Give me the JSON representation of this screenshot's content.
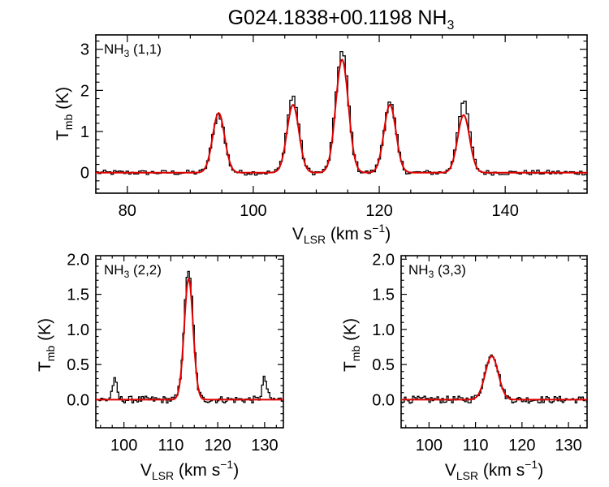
{
  "figure": {
    "title_main": "G024.1838+00.1198 NH",
    "title_sub": "3"
  },
  "chart_data": [
    {
      "type": "line",
      "panel": "top",
      "label": {
        "main": "NH",
        "sub": "3",
        "tail": " (1,1)"
      },
      "xlabel": {
        "main": "V",
        "sub": "LSR",
        "tail": " (km s",
        "sup": "−1",
        "end": ")"
      },
      "ylabel": {
        "main": "T",
        "sub": "mb",
        "tail": " (K)"
      },
      "xlim": [
        75,
        153
      ],
      "ylim": [
        -0.5,
        3.35
      ],
      "xticks": [
        80,
        100,
        120,
        140
      ],
      "yticks": [
        0,
        1,
        2,
        3
      ],
      "xtick_labels": [
        "80",
        "100",
        "120",
        "140"
      ],
      "ytick_labels": [
        "0",
        "1",
        "2",
        "3"
      ],
      "series": [
        {
          "name": "observed",
          "color": "#000000",
          "style": "histogram"
        },
        {
          "name": "fit",
          "color": "#e00000",
          "style": "line",
          "components": [
            {
              "center": 94.5,
              "amp": 1.45,
              "sigma": 0.95
            },
            {
              "center": 106.3,
              "amp": 1.65,
              "sigma": 0.95
            },
            {
              "center": 114.1,
              "amp": 2.75,
              "sigma": 1.0
            },
            {
              "center": 121.7,
              "amp": 1.65,
              "sigma": 0.95
            },
            {
              "center": 133.4,
              "amp": 1.4,
              "sigma": 0.95
            }
          ],
          "observed_peaks": [
            1.42,
            1.85,
            2.95,
            1.7,
            1.72
          ]
        }
      ]
    },
    {
      "type": "line",
      "panel": "bottom-left",
      "label": {
        "main": "NH",
        "sub": "3",
        "tail": " (2,2)"
      },
      "xlabel": {
        "main": "V",
        "sub": "LSR",
        "tail": " (km s",
        "sup": "−1",
        "end": ")"
      },
      "ylabel": {
        "main": "T",
        "sub": "mb",
        "tail": " (K)"
      },
      "xlim": [
        94,
        134
      ],
      "ylim": [
        -0.4,
        2.05
      ],
      "xticks": [
        100,
        110,
        120,
        130
      ],
      "yticks": [
        0.0,
        0.5,
        1.0,
        1.5,
        2.0
      ],
      "xtick_labels": [
        "100",
        "110",
        "120",
        "130"
      ],
      "ytick_labels": [
        "0.0",
        "0.5",
        "1.0",
        "1.5",
        "2.0"
      ],
      "series": [
        {
          "name": "observed",
          "color": "#000000",
          "style": "histogram"
        },
        {
          "name": "fit",
          "color": "#e00000",
          "style": "line",
          "components": [
            {
              "center": 113.8,
              "amp": 1.72,
              "sigma": 0.95
            }
          ],
          "observed_peaks": [
            1.85
          ],
          "noise_bumps": [
            {
              "center": 98.0,
              "amp": 0.27
            },
            {
              "center": 130.0,
              "amp": 0.3
            }
          ]
        }
      ]
    },
    {
      "type": "line",
      "panel": "bottom-right",
      "label": {
        "main": "NH",
        "sub": "3",
        "tail": " (3,3)"
      },
      "xlabel": {
        "main": "V",
        "sub": "LSR",
        "tail": " (km s",
        "sup": "−1",
        "end": ")"
      },
      "ylabel": {
        "main": "T",
        "sub": "mb",
        "tail": " (K)"
      },
      "xlim": [
        94,
        134
      ],
      "ylim": [
        -0.4,
        2.05
      ],
      "xticks": [
        100,
        110,
        120,
        130
      ],
      "yticks": [
        0.0,
        0.5,
        1.0,
        1.5,
        2.0
      ],
      "xtick_labels": [
        "100",
        "110",
        "120",
        "130"
      ],
      "ytick_labels": [
        "0.0",
        "0.5",
        "1.0",
        "1.5",
        "2.0"
      ],
      "series": [
        {
          "name": "observed",
          "color": "#000000",
          "style": "histogram"
        },
        {
          "name": "fit",
          "color": "#e00000",
          "style": "line",
          "components": [
            {
              "center": 113.5,
              "amp": 0.62,
              "sigma": 1.4
            }
          ],
          "observed_peaks": [
            0.66
          ]
        }
      ]
    }
  ]
}
